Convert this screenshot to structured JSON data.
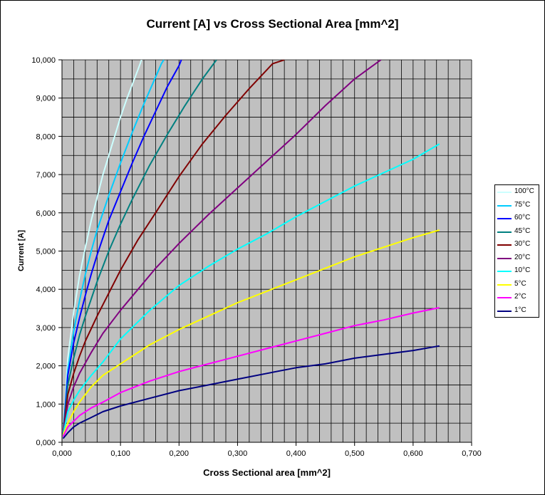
{
  "chart_data": {
    "type": "line",
    "title": "Current [A] vs Cross Sectional Area [mm^2]",
    "xlabel": "Cross Sectional area [mm^2]",
    "ylabel": "Current [A]",
    "xlim": [
      0,
      0.7
    ],
    "ylim": [
      0,
      10000
    ],
    "x_ticks": [
      "0,000",
      "0,100",
      "0,200",
      "0,300",
      "0,400",
      "0,500",
      "0,600",
      "0,700"
    ],
    "y_ticks": [
      "0,000",
      "1,000",
      "2,000",
      "3,000",
      "4,000",
      "5,000",
      "6,000",
      "7,000",
      "8,000",
      "9,000",
      "10,000"
    ],
    "grid": true,
    "plot_background": "#c0c0c0",
    "legend_position": "right",
    "series": [
      {
        "name": "100°C",
        "color": "#ccffff",
        "points": [
          [
            0.002,
            200
          ],
          [
            0.01,
            2200
          ],
          [
            0.02,
            3400
          ],
          [
            0.03,
            4350
          ],
          [
            0.04,
            5100
          ],
          [
            0.05,
            5800
          ],
          [
            0.06,
            6400
          ],
          [
            0.07,
            7000
          ],
          [
            0.08,
            7500
          ],
          [
            0.09,
            8000
          ],
          [
            0.1,
            8500
          ],
          [
            0.11,
            8950
          ],
          [
            0.12,
            9350
          ],
          [
            0.13,
            9750
          ],
          [
            0.136,
            10000
          ]
        ]
      },
      {
        "name": "75°C",
        "color": "#00ccff",
        "points": [
          [
            0.002,
            200
          ],
          [
            0.01,
            1900
          ],
          [
            0.02,
            2900
          ],
          [
            0.03,
            3700
          ],
          [
            0.04,
            4400
          ],
          [
            0.05,
            5000
          ],
          [
            0.06,
            5550
          ],
          [
            0.07,
            6000
          ],
          [
            0.08,
            6450
          ],
          [
            0.1,
            7300
          ],
          [
            0.12,
            8100
          ],
          [
            0.14,
            8850
          ],
          [
            0.16,
            9550
          ],
          [
            0.17,
            9900
          ],
          [
            0.174,
            10000
          ]
        ]
      },
      {
        "name": "60°C",
        "color": "#0000ff",
        "points": [
          [
            0.002,
            200
          ],
          [
            0.01,
            1750
          ],
          [
            0.02,
            2600
          ],
          [
            0.03,
            3250
          ],
          [
            0.04,
            3850
          ],
          [
            0.05,
            4400
          ],
          [
            0.06,
            4900
          ],
          [
            0.08,
            5800
          ],
          [
            0.1,
            6550
          ],
          [
            0.12,
            7300
          ],
          [
            0.14,
            8000
          ],
          [
            0.16,
            8650
          ],
          [
            0.18,
            9300
          ],
          [
            0.2,
            9850
          ],
          [
            0.204,
            10000
          ]
        ]
      },
      {
        "name": "45°C",
        "color": "#008080",
        "points": [
          [
            0.002,
            200
          ],
          [
            0.01,
            1500
          ],
          [
            0.02,
            2200
          ],
          [
            0.03,
            2800
          ],
          [
            0.04,
            3300
          ],
          [
            0.06,
            4200
          ],
          [
            0.08,
            5000
          ],
          [
            0.1,
            5700
          ],
          [
            0.12,
            6350
          ],
          [
            0.15,
            7250
          ],
          [
            0.18,
            8050
          ],
          [
            0.21,
            8800
          ],
          [
            0.24,
            9500
          ],
          [
            0.264,
            10000
          ]
        ]
      },
      {
        "name": "30°C",
        "color": "#800000",
        "points": [
          [
            0.002,
            200
          ],
          [
            0.01,
            1250
          ],
          [
            0.02,
            1800
          ],
          [
            0.03,
            2250
          ],
          [
            0.04,
            2650
          ],
          [
            0.06,
            3300
          ],
          [
            0.08,
            3900
          ],
          [
            0.1,
            4500
          ],
          [
            0.13,
            5300
          ],
          [
            0.16,
            6000
          ],
          [
            0.2,
            6950
          ],
          [
            0.24,
            7800
          ],
          [
            0.28,
            8550
          ],
          [
            0.32,
            9250
          ],
          [
            0.36,
            9900
          ],
          [
            0.38,
            10000
          ]
        ]
      },
      {
        "name": "20°C",
        "color": "#800080",
        "points": [
          [
            0.002,
            200
          ],
          [
            0.01,
            1000
          ],
          [
            0.02,
            1450
          ],
          [
            0.03,
            1800
          ],
          [
            0.05,
            2350
          ],
          [
            0.07,
            2850
          ],
          [
            0.1,
            3450
          ],
          [
            0.13,
            4000
          ],
          [
            0.16,
            4550
          ],
          [
            0.2,
            5200
          ],
          [
            0.25,
            5950
          ],
          [
            0.3,
            6650
          ],
          [
            0.35,
            7350
          ],
          [
            0.4,
            8050
          ],
          [
            0.45,
            8800
          ],
          [
            0.5,
            9500
          ],
          [
            0.545,
            10000
          ]
        ]
      },
      {
        "name": "10°C",
        "color": "#00ffff",
        "points": [
          [
            0.002,
            200
          ],
          [
            0.01,
            800
          ],
          [
            0.02,
            1100
          ],
          [
            0.03,
            1350
          ],
          [
            0.05,
            1750
          ],
          [
            0.07,
            2100
          ],
          [
            0.1,
            2700
          ],
          [
            0.15,
            3450
          ],
          [
            0.2,
            4100
          ],
          [
            0.25,
            4600
          ],
          [
            0.3,
            5050
          ],
          [
            0.35,
            5450
          ],
          [
            0.4,
            5900
          ],
          [
            0.45,
            6300
          ],
          [
            0.5,
            6700
          ],
          [
            0.55,
            7050
          ],
          [
            0.6,
            7400
          ],
          [
            0.645,
            7800
          ]
        ]
      },
      {
        "name": "5°C",
        "color": "#ffff00",
        "points": [
          [
            0.002,
            200
          ],
          [
            0.01,
            500
          ],
          [
            0.02,
            800
          ],
          [
            0.03,
            1050
          ],
          [
            0.05,
            1450
          ],
          [
            0.07,
            1750
          ],
          [
            0.1,
            2050
          ],
          [
            0.15,
            2550
          ],
          [
            0.2,
            2950
          ],
          [
            0.25,
            3300
          ],
          [
            0.3,
            3650
          ],
          [
            0.35,
            3950
          ],
          [
            0.4,
            4250
          ],
          [
            0.45,
            4550
          ],
          [
            0.5,
            4850
          ],
          [
            0.55,
            5100
          ],
          [
            0.6,
            5350
          ],
          [
            0.645,
            5550
          ]
        ]
      },
      {
        "name": "2°C",
        "color": "#ff00ff",
        "points": [
          [
            0.002,
            150
          ],
          [
            0.01,
            400
          ],
          [
            0.02,
            550
          ],
          [
            0.03,
            700
          ],
          [
            0.05,
            900
          ],
          [
            0.07,
            1050
          ],
          [
            0.1,
            1300
          ],
          [
            0.15,
            1600
          ],
          [
            0.2,
            1850
          ],
          [
            0.25,
            2050
          ],
          [
            0.3,
            2250
          ],
          [
            0.35,
            2450
          ],
          [
            0.4,
            2650
          ],
          [
            0.45,
            2850
          ],
          [
            0.5,
            3050
          ],
          [
            0.55,
            3200
          ],
          [
            0.6,
            3380
          ],
          [
            0.645,
            3520
          ]
        ]
      },
      {
        "name": "1°C",
        "color": "#000080",
        "points": [
          [
            0.002,
            100
          ],
          [
            0.01,
            250
          ],
          [
            0.02,
            400
          ],
          [
            0.03,
            500
          ],
          [
            0.05,
            650
          ],
          [
            0.07,
            800
          ],
          [
            0.1,
            950
          ],
          [
            0.15,
            1150
          ],
          [
            0.2,
            1350
          ],
          [
            0.25,
            1500
          ],
          [
            0.3,
            1650
          ],
          [
            0.35,
            1800
          ],
          [
            0.4,
            1950
          ],
          [
            0.45,
            2050
          ],
          [
            0.5,
            2200
          ],
          [
            0.55,
            2300
          ],
          [
            0.6,
            2400
          ],
          [
            0.645,
            2520
          ]
        ]
      }
    ]
  }
}
